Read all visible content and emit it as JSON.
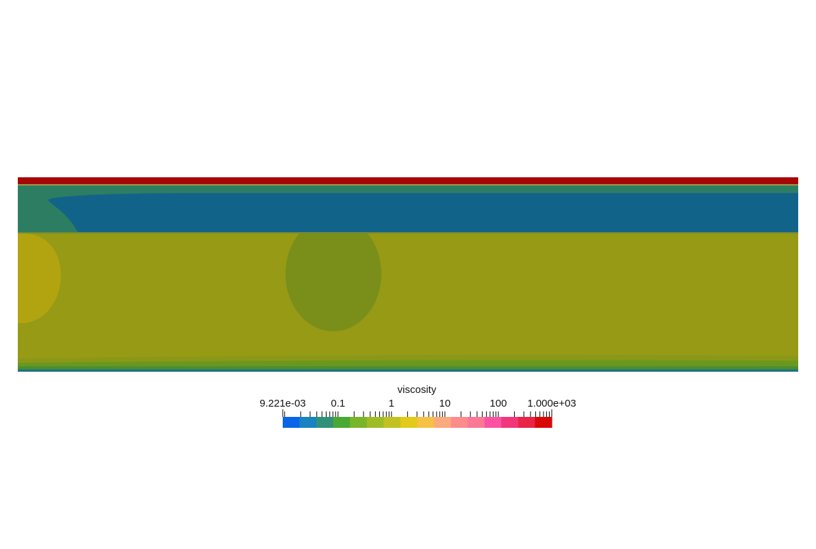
{
  "chart_data": {
    "type": "heatmap",
    "field": "viscosity",
    "scale": "log",
    "range": [
      0.009221,
      1000
    ],
    "colorbar": {
      "title": "viscosity",
      "orientation": "horizontal",
      "placement": "bottom-center",
      "min_label": "9.221e-03",
      "max_label": "1.000e+03",
      "tick_labels": [
        {
          "value": 0.1,
          "text": "0.1"
        },
        {
          "value": 1,
          "text": "1"
        },
        {
          "value": 10,
          "text": "10"
        },
        {
          "value": 100,
          "text": "100"
        }
      ],
      "bin_colors": [
        "#0a64e8",
        "#1982c2",
        "#319178",
        "#49a832",
        "#79b528",
        "#9fbb26",
        "#c1c221",
        "#e2c91c",
        "#f6c144",
        "#fca97c",
        "#fc8c8c",
        "#fa7896",
        "#fc52a2",
        "#f2367a",
        "#e82546",
        "#d80808"
      ]
    },
    "regions": [
      {
        "name": "top-boundary-layer",
        "color": "#a80606"
      },
      {
        "name": "upper-mixed-layer",
        "color": "#2d7d62"
      },
      {
        "name": "low-viscosity-lens",
        "color": "#12638a"
      },
      {
        "name": "main-layer",
        "color": "#969a14"
      },
      {
        "name": "left-warm-blob",
        "color": "#b2a410"
      },
      {
        "name": "central-green-blob",
        "color": "#7a8e1a"
      },
      {
        "name": "bottom-boundary-layers",
        "color": "#4b8f2e"
      }
    ]
  }
}
